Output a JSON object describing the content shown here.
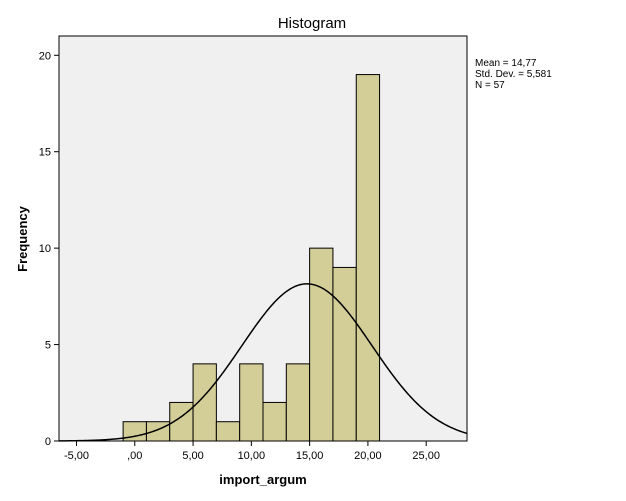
{
  "chart_data": {
    "type": "bar",
    "title": "Histogram",
    "xlabel": "import_argum",
    "ylabel": "Frequency",
    "xlim": [
      -6.5,
      28.5
    ],
    "ylim": [
      0,
      21
    ],
    "x_ticks": [
      {
        "value": -5,
        "label": "-5,00"
      },
      {
        "value": 0,
        "label": ",00"
      },
      {
        "value": 5,
        "label": "5,00"
      },
      {
        "value": 10,
        "label": "10,00"
      },
      {
        "value": 15,
        "label": "15,00"
      },
      {
        "value": 20,
        "label": "20,00"
      },
      {
        "value": 25,
        "label": "25,00"
      }
    ],
    "y_ticks": [
      {
        "value": 0,
        "label": "0"
      },
      {
        "value": 5,
        "label": "5"
      },
      {
        "value": 10,
        "label": "10"
      },
      {
        "value": 15,
        "label": "15"
      },
      {
        "value": 20,
        "label": "20"
      }
    ],
    "bins": [
      {
        "start": -1.0,
        "end": 1.0,
        "count": 1
      },
      {
        "start": 1.0,
        "end": 3.0,
        "count": 1
      },
      {
        "start": 3.0,
        "end": 5.0,
        "count": 2
      },
      {
        "start": 5.0,
        "end": 7.0,
        "count": 4
      },
      {
        "start": 7.0,
        "end": 9.0,
        "count": 1
      },
      {
        "start": 9.0,
        "end": 11.0,
        "count": 4
      },
      {
        "start": 11.0,
        "end": 13.0,
        "count": 2
      },
      {
        "start": 13.0,
        "end": 15.0,
        "count": 4
      },
      {
        "start": 15.0,
        "end": 17.0,
        "count": 10
      },
      {
        "start": 17.0,
        "end": 19.0,
        "count": 9
      },
      {
        "start": 19.0,
        "end": 21.0,
        "count": 19
      }
    ],
    "normal_curve": {
      "mean": 14.77,
      "sd": 5.581,
      "n": 57,
      "bin_width": 2.0
    },
    "stats": [
      "Mean = 14,77",
      "Std. Dev. = 5,581",
      "N = 57"
    ],
    "grid": false,
    "colors": {
      "plot_bg": "#f0f0f0",
      "bar_fill": "#d3ce97",
      "bar_stroke": "#000000",
      "curve": "#000000"
    }
  }
}
